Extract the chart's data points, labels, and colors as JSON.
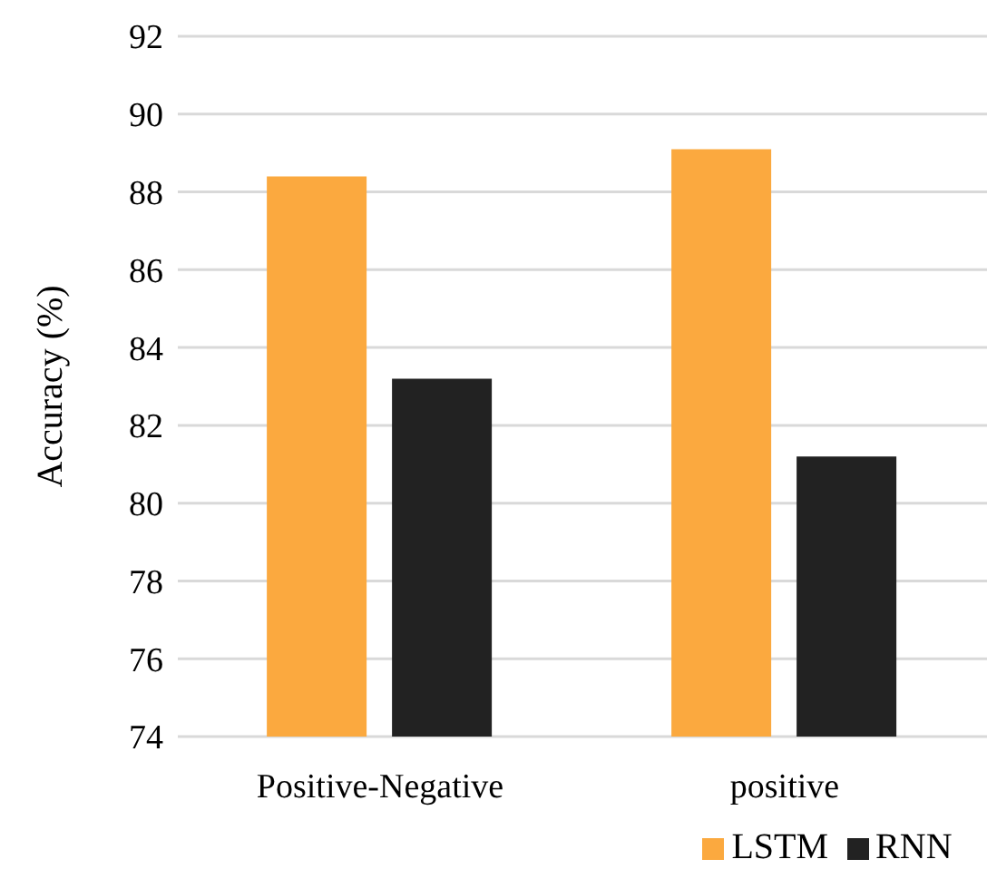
{
  "chart_data": {
    "type": "bar",
    "ylabel": "Accuracy (%)",
    "categories": [
      "Positive-Negative",
      "positive"
    ],
    "series": [
      {
        "name": "LSTM",
        "color": "#fba93f",
        "values": [
          88.4,
          89.1
        ]
      },
      {
        "name": "RNN",
        "color": "#222222",
        "values": [
          83.2,
          81.2
        ]
      }
    ],
    "ylim": [
      74,
      92
    ],
    "yticks": [
      74,
      76,
      78,
      80,
      82,
      84,
      86,
      88,
      90,
      92
    ],
    "grid": "y",
    "legend": "bottom"
  }
}
